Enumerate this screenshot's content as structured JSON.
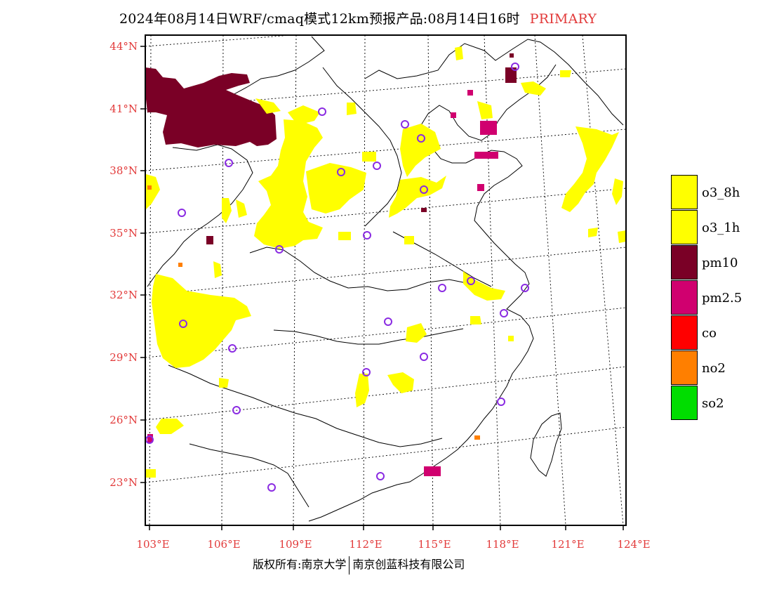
{
  "header": {
    "title": "2024年08月14日WRF/cmaq模式12km预报产品:08月14日16时",
    "tag": "PRIMARY",
    "tag_color": "#e23a3a"
  },
  "map": {
    "lat_labels": [
      "44°N",
      "41°N",
      "38°N",
      "35°N",
      "32°N",
      "29°N",
      "26°N",
      "23°N"
    ],
    "lon_labels": [
      "103°E",
      "106°E",
      "109°E",
      "112°E",
      "115°E",
      "118°E",
      "121°E",
      "124°E"
    ],
    "pollutant_colors": {
      "o3_8h": "#ffff00",
      "o3_1h": "#ffff00",
      "pm10": "#7a0026",
      "pm2.5": "#d0006f",
      "co": "#ff0000",
      "no2": "#ff7f00",
      "so2": "#00dd00"
    },
    "city_marker_color": "#8a2be2",
    "city_marker": "circle-outline"
  },
  "legend": {
    "items": [
      {
        "label": "o3_8h",
        "color": "#ffff00"
      },
      {
        "label": "o3_1h",
        "color": "#ffff00"
      },
      {
        "label": "pm10",
        "color": "#7a0026"
      },
      {
        "label": "pm2.5",
        "color": "#d0006f"
      },
      {
        "label": "co",
        "color": "#ff0000"
      },
      {
        "label": "no2",
        "color": "#ff7f00"
      },
      {
        "label": "so2",
        "color": "#00dd00"
      }
    ]
  },
  "footer": {
    "left": "版权所有:南京大学",
    "right": "南京创蓝科技有限公司"
  }
}
